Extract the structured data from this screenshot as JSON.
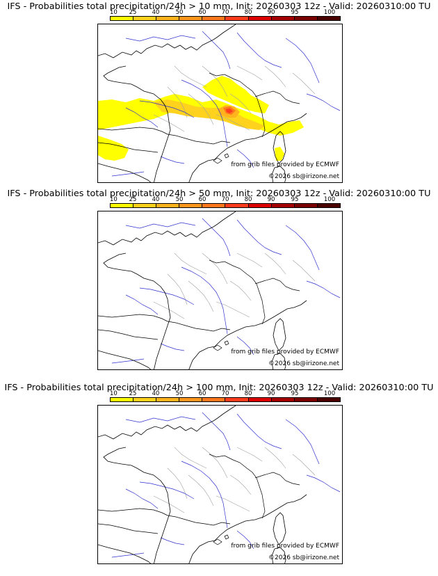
{
  "legend": {
    "ticks": [
      "10",
      "25",
      "40",
      "50",
      "60",
      "70",
      "80",
      "90",
      "95",
      "100"
    ],
    "colors": [
      "#ffff00",
      "#ffd21e",
      "#ffb41e",
      "#ff961e",
      "#ff781e",
      "#ff3c1e",
      "#dc0000",
      "#a50000",
      "#7a0000",
      "#4b0000"
    ]
  },
  "credits": {
    "source": "from grib files provided by ECMWF",
    "copyright": "©2026 sb@irizone.net"
  },
  "panels": [
    {
      "title": "IFS - Probabilities total precipitation/24h > 10 mm, Init: 20260303 12z - Valid: 20260310:00 TU",
      "has_precip": true
    },
    {
      "title": "IFS - Probabilities total precipitation/24h > 50 mm, Init: 20260303 12z - Valid: 20260310:00 TU",
      "has_precip": false
    },
    {
      "title": "IFS - Probabilities total precipitation/24h > 100 mm, Init: 20260303 12z - Valid: 20260310:00 TU",
      "has_precip": false
    }
  ]
}
